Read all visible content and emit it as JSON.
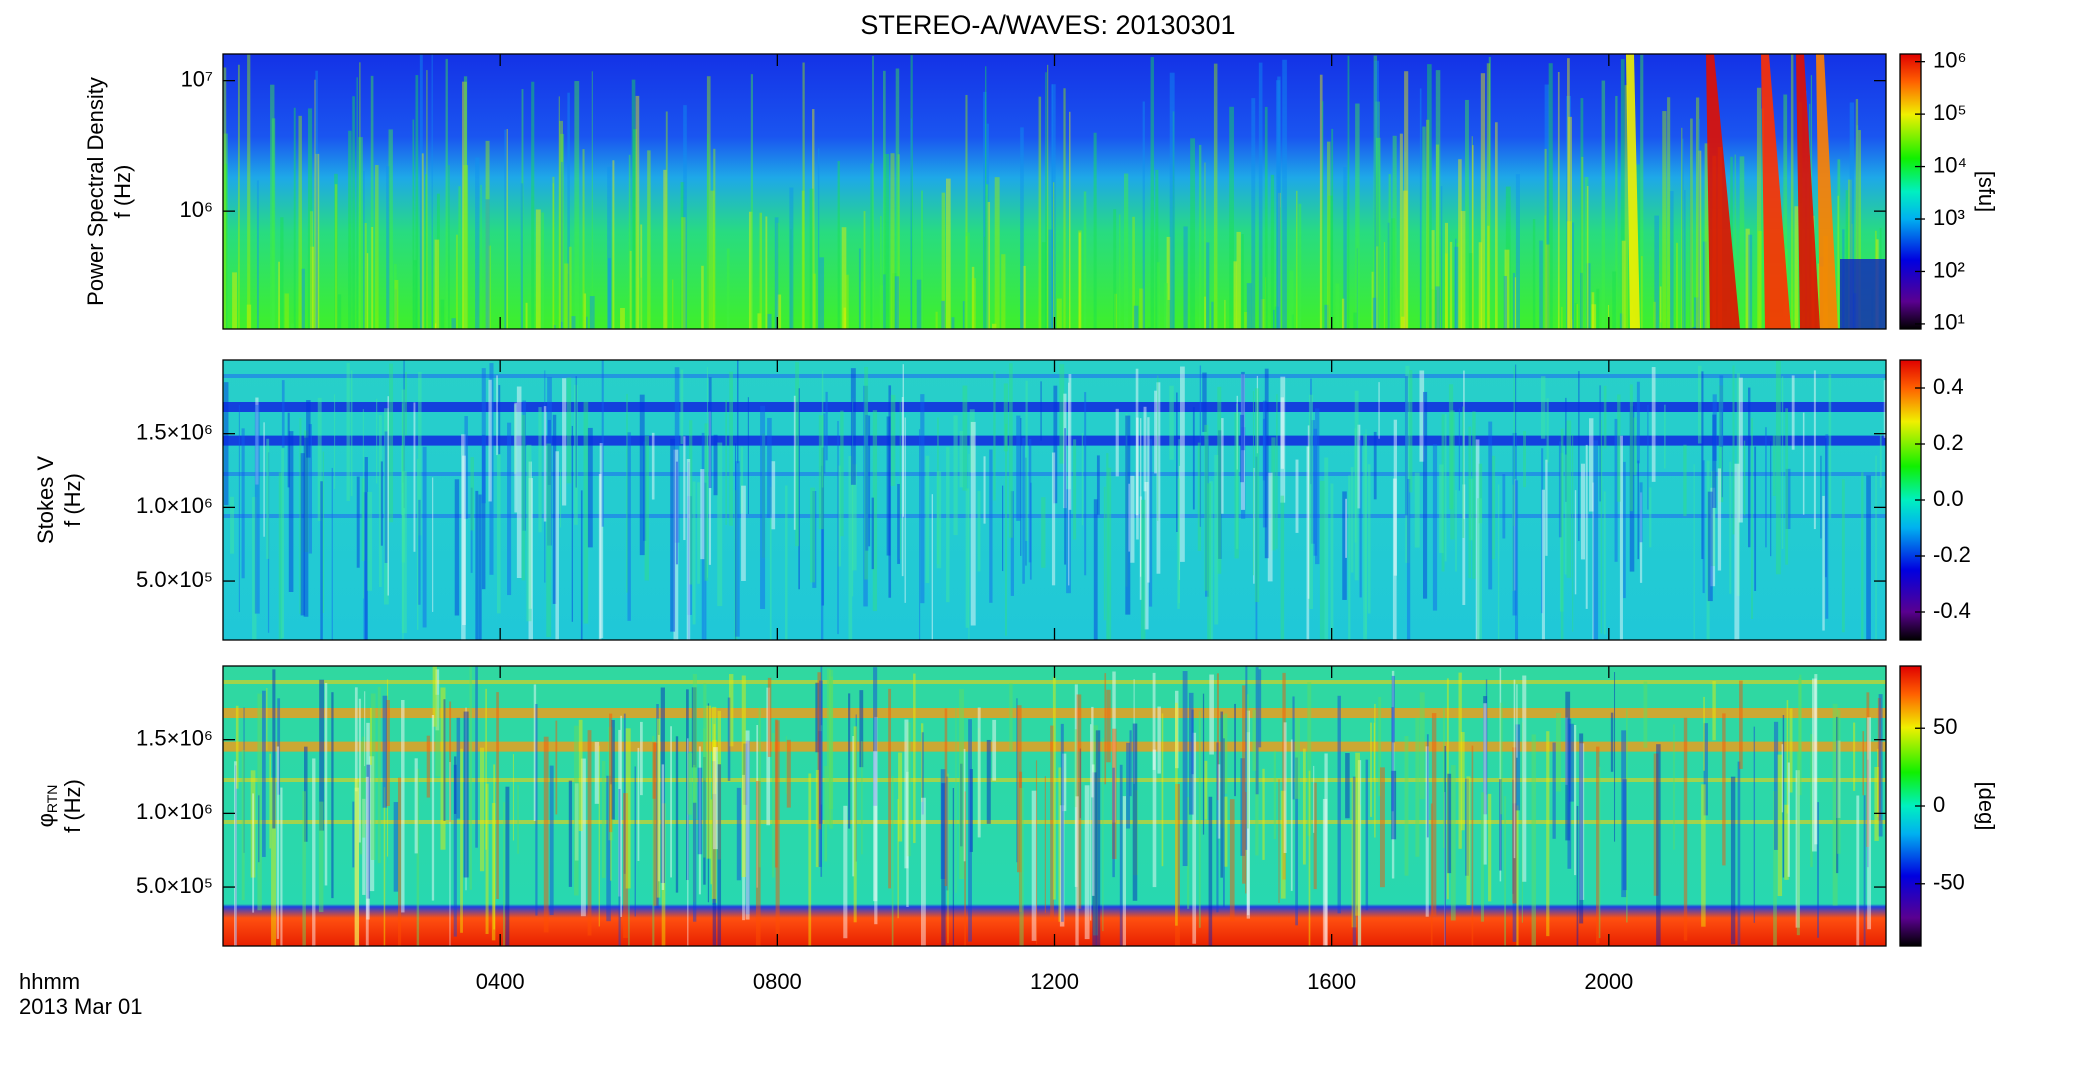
{
  "chart_data": [
    {
      "type": "spectrogram",
      "title": "STEREO-A/WAVES: 20130301",
      "ylabel": [
        "Power Spectral Density",
        "f (Hz)"
      ],
      "ylog": true,
      "ylim": [
        125000,
        16000000
      ],
      "yticks": [
        {
          "value": 1000000,
          "label": "10⁶"
        },
        {
          "value": 10000000,
          "label": "10⁷"
        }
      ],
      "colorbar": {
        "label": "[sfu]",
        "log": true,
        "lim": [
          8,
          1400000
        ],
        "ticks": [
          {
            "value": 10,
            "label": "10¹"
          },
          {
            "value": 100,
            "label": "10²"
          },
          {
            "value": 1000,
            "label": "10³"
          },
          {
            "value": 10000,
            "label": "10⁴"
          },
          {
            "value": 100000,
            "label": "10⁵"
          },
          {
            "value": 1000000,
            "label": "10⁶"
          }
        ]
      }
    },
    {
      "type": "spectrogram",
      "ylabel": [
        "Stokes V",
        "f (Hz)"
      ],
      "ylog": false,
      "ylim": [
        100000,
        2000000
      ],
      "yticks": [
        {
          "value": 500000,
          "label": "5.0×10⁵"
        },
        {
          "value": 1000000,
          "label": "1.0×10⁶"
        },
        {
          "value": 1500000,
          "label": "1.5×10⁶"
        }
      ],
      "colorbar": {
        "log": false,
        "lim": [
          -0.5,
          0.5
        ],
        "ticks": [
          {
            "value": -0.4,
            "label": "-0.4"
          },
          {
            "value": -0.2,
            "label": "-0.2"
          },
          {
            "value": 0,
            "label": "0.0"
          },
          0.2,
          0.4
        ]
      }
    },
    {
      "type": "spectrogram",
      "ylabel_symbol": {
        "symbol": "φ",
        "subscript": "RTN"
      },
      "ylabel": [
        "f (Hz)"
      ],
      "ylog": false,
      "ylim": [
        100000,
        2000000
      ],
      "yticks": [
        {
          "value": 500000,
          "label": "5.0×10⁵"
        },
        {
          "value": 1000000,
          "label": "1.0×10⁶"
        },
        {
          "value": 1500000,
          "label": "1.5×10⁶"
        }
      ],
      "colorbar": {
        "label": "[deg]",
        "log": false,
        "lim": [
          -90,
          90
        ],
        "ticks": [
          -50,
          0,
          50
        ]
      },
      "xlabel": [
        "hhmm",
        "2013 Mar 01"
      ],
      "xlim": [
        0,
        24
      ],
      "xticks": [
        {
          "value": 4,
          "label": "0400"
        },
        {
          "value": 8,
          "label": "0800"
        },
        {
          "value": 12,
          "label": "1200"
        },
        {
          "value": 16,
          "label": "1600"
        },
        {
          "value": 20,
          "label": "2000"
        }
      ]
    }
  ]
}
